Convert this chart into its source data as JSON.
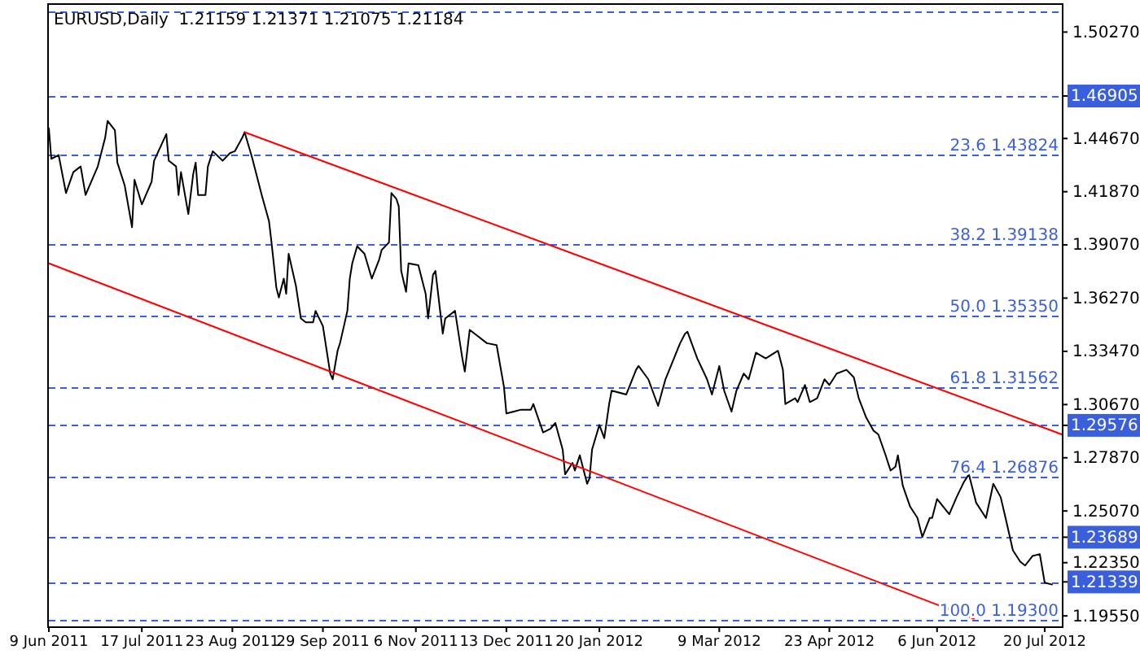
{
  "chart_data": {
    "type": "line",
    "title": "EURUSD,Daily  1.21159 1.21371 1.21075 1.21184",
    "xlim": [
      "2011-06-09",
      "2012-07-27"
    ],
    "xticks": [
      {
        "value": "2011-06-09",
        "label": "9 Jun 2011"
      },
      {
        "value": "2011-07-17",
        "label": "17 Jul 2011"
      },
      {
        "value": "2011-08-23",
        "label": "23 Aug 2011"
      },
      {
        "value": "2011-09-29",
        "label": "29 Sep 2011"
      },
      {
        "value": "2011-11-06",
        "label": "6 Nov 2011"
      },
      {
        "value": "2011-12-13",
        "label": "13 Dec 2011"
      },
      {
        "value": "2012-01-20",
        "label": "20 Jan 2012"
      },
      {
        "value": "2012-03-09",
        "label": "9 Mar 2012"
      },
      {
        "value": "2012-04-23",
        "label": "23 Apr 2012"
      },
      {
        "value": "2012-06-06",
        "label": "6 Jun 2012"
      },
      {
        "value": "2012-07-20",
        "label": "20 Jul 2012"
      }
    ],
    "ylim": [
      1.19,
      1.517
    ],
    "yticks": [
      {
        "value": 1.5027,
        "label": "1.50270"
      },
      {
        "value": 1.46905,
        "label": "1.46905"
      },
      {
        "value": 1.4467,
        "label": "1.44670"
      },
      {
        "value": 1.4187,
        "label": "1.41870"
      },
      {
        "value": 1.3907,
        "label": "1.39070"
      },
      {
        "value": 1.3627,
        "label": "1.36270"
      },
      {
        "value": 1.3347,
        "label": "1.33470"
      },
      {
        "value": 1.3067,
        "label": "1.30670"
      },
      {
        "value": 1.29576,
        "label": "1.29576"
      },
      {
        "value": 1.2787,
        "label": "1.27870"
      },
      {
        "value": 1.2507,
        "label": "1.25070"
      },
      {
        "value": 1.23689,
        "label": "1.23689"
      },
      {
        "value": 1.2235,
        "label": "1.22350"
      },
      {
        "value": 1.21339,
        "label": "1.21339"
      },
      {
        "value": 1.1955,
        "label": "1.19550"
      }
    ],
    "grid": false,
    "marker": "none",
    "line_style": "solid",
    "series": [
      {
        "color": "#000000",
        "x": [
          "2011-06-09",
          "2011-06-10",
          "2011-06-13",
          "2011-06-16",
          "2011-06-19",
          "2011-06-22",
          "2011-06-24",
          "2011-06-29",
          "2011-07-02",
          "2011-07-03",
          "2011-07-06",
          "2011-07-07",
          "2011-07-10",
          "2011-07-13",
          "2011-07-14",
          "2011-07-17",
          "2011-07-21",
          "2011-07-22",
          "2011-07-27",
          "2011-07-28",
          "2011-07-31",
          "2011-08-01",
          "2011-08-02",
          "2011-08-05",
          "2011-08-07",
          "2011-08-08",
          "2011-08-09",
          "2011-08-12",
          "2011-08-13",
          "2011-08-15",
          "2011-08-19",
          "2011-08-22",
          "2011-08-24",
          "2011-08-27",
          "2011-08-28",
          "2011-08-31",
          "2011-09-04",
          "2011-09-07",
          "2011-09-08",
          "2011-09-10",
          "2011-09-11",
          "2011-09-13",
          "2011-09-14",
          "2011-09-15",
          "2011-09-18",
          "2011-09-20",
          "2011-09-22",
          "2011-09-25",
          "2011-09-26",
          "2011-09-29",
          "2011-10-02",
          "2011-10-03",
          "2011-10-05",
          "2011-10-06",
          "2011-10-09",
          "2011-10-10",
          "2011-10-11",
          "2011-10-13",
          "2011-10-16",
          "2011-10-19",
          "2011-10-22",
          "2011-10-23",
          "2011-10-26",
          "2011-10-27",
          "2011-10-29",
          "2011-10-30",
          "2011-10-31",
          "2011-11-02",
          "2011-11-03",
          "2011-11-07",
          "2011-11-10",
          "2011-11-11",
          "2011-11-13",
          "2011-11-14",
          "2011-11-17",
          "2011-11-18",
          "2011-11-22",
          "2011-11-25",
          "2011-11-26",
          "2011-11-28",
          "2011-12-01",
          "2011-12-05",
          "2011-12-09",
          "2011-12-12",
          "2011-12-13",
          "2011-12-16",
          "2011-12-19",
          "2011-12-23",
          "2011-12-24",
          "2011-12-28",
          "2011-12-31",
          "2012-01-02",
          "2012-01-05",
          "2012-01-06",
          "2012-01-09",
          "2012-01-10",
          "2012-01-12",
          "2012-01-15",
          "2012-01-16",
          "2012-01-17",
          "2012-01-20",
          "2012-01-22",
          "2012-01-24",
          "2012-01-25",
          "2012-01-31",
          "2012-02-04",
          "2012-02-05",
          "2012-02-09",
          "2012-02-13",
          "2012-02-16",
          "2012-02-22",
          "2012-02-24",
          "2012-02-25",
          "2012-02-29",
          "2012-03-04",
          "2012-03-06",
          "2012-03-09",
          "2012-03-11",
          "2012-03-14",
          "2012-03-16",
          "2012-03-19",
          "2012-03-21",
          "2012-03-24",
          "2012-03-28",
          "2012-04-02",
          "2012-04-04",
          "2012-04-05",
          "2012-04-09",
          "2012-04-10",
          "2012-04-13",
          "2012-04-15",
          "2012-04-18",
          "2012-04-21",
          "2012-04-23",
          "2012-04-26",
          "2012-04-30",
          "2012-05-03",
          "2012-05-05",
          "2012-05-08",
          "2012-05-11",
          "2012-05-13",
          "2012-05-16",
          "2012-05-18",
          "2012-05-20",
          "2012-05-21",
          "2012-05-23",
          "2012-05-26",
          "2012-05-29",
          "2012-05-31",
          "2012-06-03",
          "2012-06-04",
          "2012-06-06",
          "2012-06-11",
          "2012-06-14",
          "2012-06-17",
          "2012-06-19",
          "2012-06-22",
          "2012-06-26",
          "2012-06-29",
          "2012-07-02",
          "2012-07-04",
          "2012-07-07",
          "2012-07-10",
          "2012-07-12",
          "2012-07-15",
          "2012-07-18",
          "2012-07-20",
          "2012-07-23"
        ],
        "values": [
          1.452,
          1.436,
          1.438,
          1.418,
          1.429,
          1.432,
          1.417,
          1.432,
          1.447,
          1.456,
          1.451,
          1.434,
          1.422,
          1.4,
          1.425,
          1.412,
          1.424,
          1.435,
          1.449,
          1.435,
          1.432,
          1.417,
          1.429,
          1.407,
          1.428,
          1.434,
          1.417,
          1.417,
          1.432,
          1.44,
          1.435,
          1.439,
          1.44,
          1.447,
          1.45,
          1.437,
          1.417,
          1.403,
          1.392,
          1.368,
          1.363,
          1.373,
          1.365,
          1.386,
          1.369,
          1.352,
          1.35,
          1.35,
          1.356,
          1.348,
          1.323,
          1.32,
          1.335,
          1.339,
          1.356,
          1.373,
          1.381,
          1.39,
          1.386,
          1.373,
          1.383,
          1.388,
          1.392,
          1.418,
          1.415,
          1.411,
          1.377,
          1.366,
          1.381,
          1.38,
          1.365,
          1.352,
          1.375,
          1.377,
          1.344,
          1.352,
          1.356,
          1.331,
          1.324,
          1.346,
          1.343,
          1.339,
          1.338,
          1.316,
          1.302,
          1.303,
          1.304,
          1.304,
          1.307,
          1.292,
          1.294,
          1.297,
          1.283,
          1.27,
          1.276,
          1.272,
          1.28,
          1.265,
          1.268,
          1.283,
          1.296,
          1.289,
          1.307,
          1.314,
          1.312,
          1.325,
          1.327,
          1.32,
          1.306,
          1.32,
          1.339,
          1.344,
          1.345,
          1.331,
          1.32,
          1.312,
          1.327,
          1.314,
          1.303,
          1.314,
          1.323,
          1.32,
          1.334,
          1.331,
          1.335,
          1.325,
          1.307,
          1.31,
          1.308,
          1.317,
          1.308,
          1.31,
          1.32,
          1.317,
          1.323,
          1.325,
          1.321,
          1.31,
          1.3,
          1.293,
          1.291,
          1.28,
          1.272,
          1.274,
          1.28,
          1.264,
          1.253,
          1.247,
          1.237,
          1.247,
          1.247,
          1.257,
          1.249,
          1.258,
          1.266,
          1.27,
          1.255,
          1.247,
          1.265,
          1.258,
          1.247,
          1.23,
          1.224,
          1.222,
          1.227,
          1.228,
          1.213,
          1.212
        ]
      },
      {
        "color": "#ff0000",
        "x": [
          "2011-08-28",
          "2012-07-27"
        ],
        "values": [
          1.45,
          1.291
        ]
      },
      {
        "color": "#ff0000",
        "x": [
          "2011-06-09",
          "2012-06-21"
        ],
        "values": [
          1.381,
          1.194
        ]
      }
    ],
    "ref_lines": [
      {
        "axis": "y",
        "value": 1.514,
        "label": null,
        "color": "#3a5fdc",
        "line_style": "dashed"
      },
      {
        "axis": "y",
        "value": 1.46905,
        "label": null,
        "color": "#3a5fdc",
        "line_style": "dashed"
      },
      {
        "axis": "y",
        "value": 1.43824,
        "label": "23.6 1.43824",
        "color": "#3a5fdc",
        "line_style": "dashed"
      },
      {
        "axis": "y",
        "value": 1.39138,
        "label": "38.2 1.39138",
        "color": "#3a5fdc",
        "line_style": "dashed"
      },
      {
        "axis": "y",
        "value": 1.3535,
        "label": "50.0 1.35350",
        "color": "#3a5fdc",
        "line_style": "dashed"
      },
      {
        "axis": "y",
        "value": 1.31562,
        "label": "61.8 1.31562",
        "color": "#3a5fdc",
        "line_style": "dashed"
      },
      {
        "axis": "y",
        "value": 1.29576,
        "label": null,
        "color": "#3a5fdc",
        "line_style": "dashed"
      },
      {
        "axis": "y",
        "value": 1.26876,
        "label": "76.4 1.26876",
        "color": "#3a5fdc",
        "line_style": "dashed"
      },
      {
        "axis": "y",
        "value": 1.23689,
        "label": null,
        "color": "#3a5fdc",
        "line_style": "dashed"
      },
      {
        "axis": "y",
        "value": 1.21339,
        "label": null,
        "color": "#3a5fdc",
        "line_style": "dashed"
      },
      {
        "axis": "y",
        "value": 1.193,
        "label": "100.0 1.19300",
        "color": "#3a5fdc",
        "line_style": "dashed"
      }
    ]
  }
}
